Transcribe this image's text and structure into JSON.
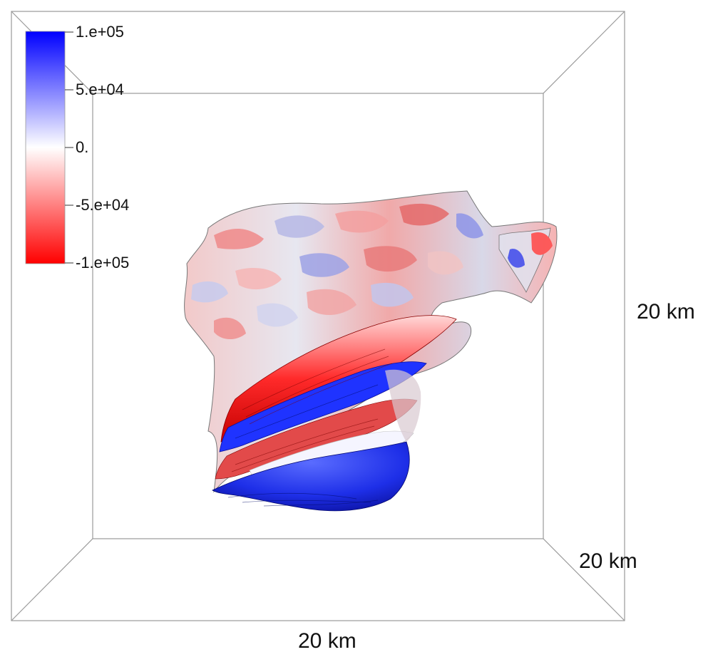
{
  "colorbar": {
    "ticks": [
      "1.e+05",
      "5.e+04",
      "0.",
      "-5.e+04",
      "-1.e+05"
    ],
    "colors": {
      "max": "#0000ff",
      "mid": "#ffffff",
      "min": "#ff0000"
    }
  },
  "axes": {
    "x_label": "20 km",
    "y_label": "20 km",
    "z_label": "20 km"
  },
  "scene": {
    "object": "isosurface-blob",
    "palette": [
      "#ff0000",
      "#ffffff",
      "#0000ff",
      "#555555"
    ]
  }
}
